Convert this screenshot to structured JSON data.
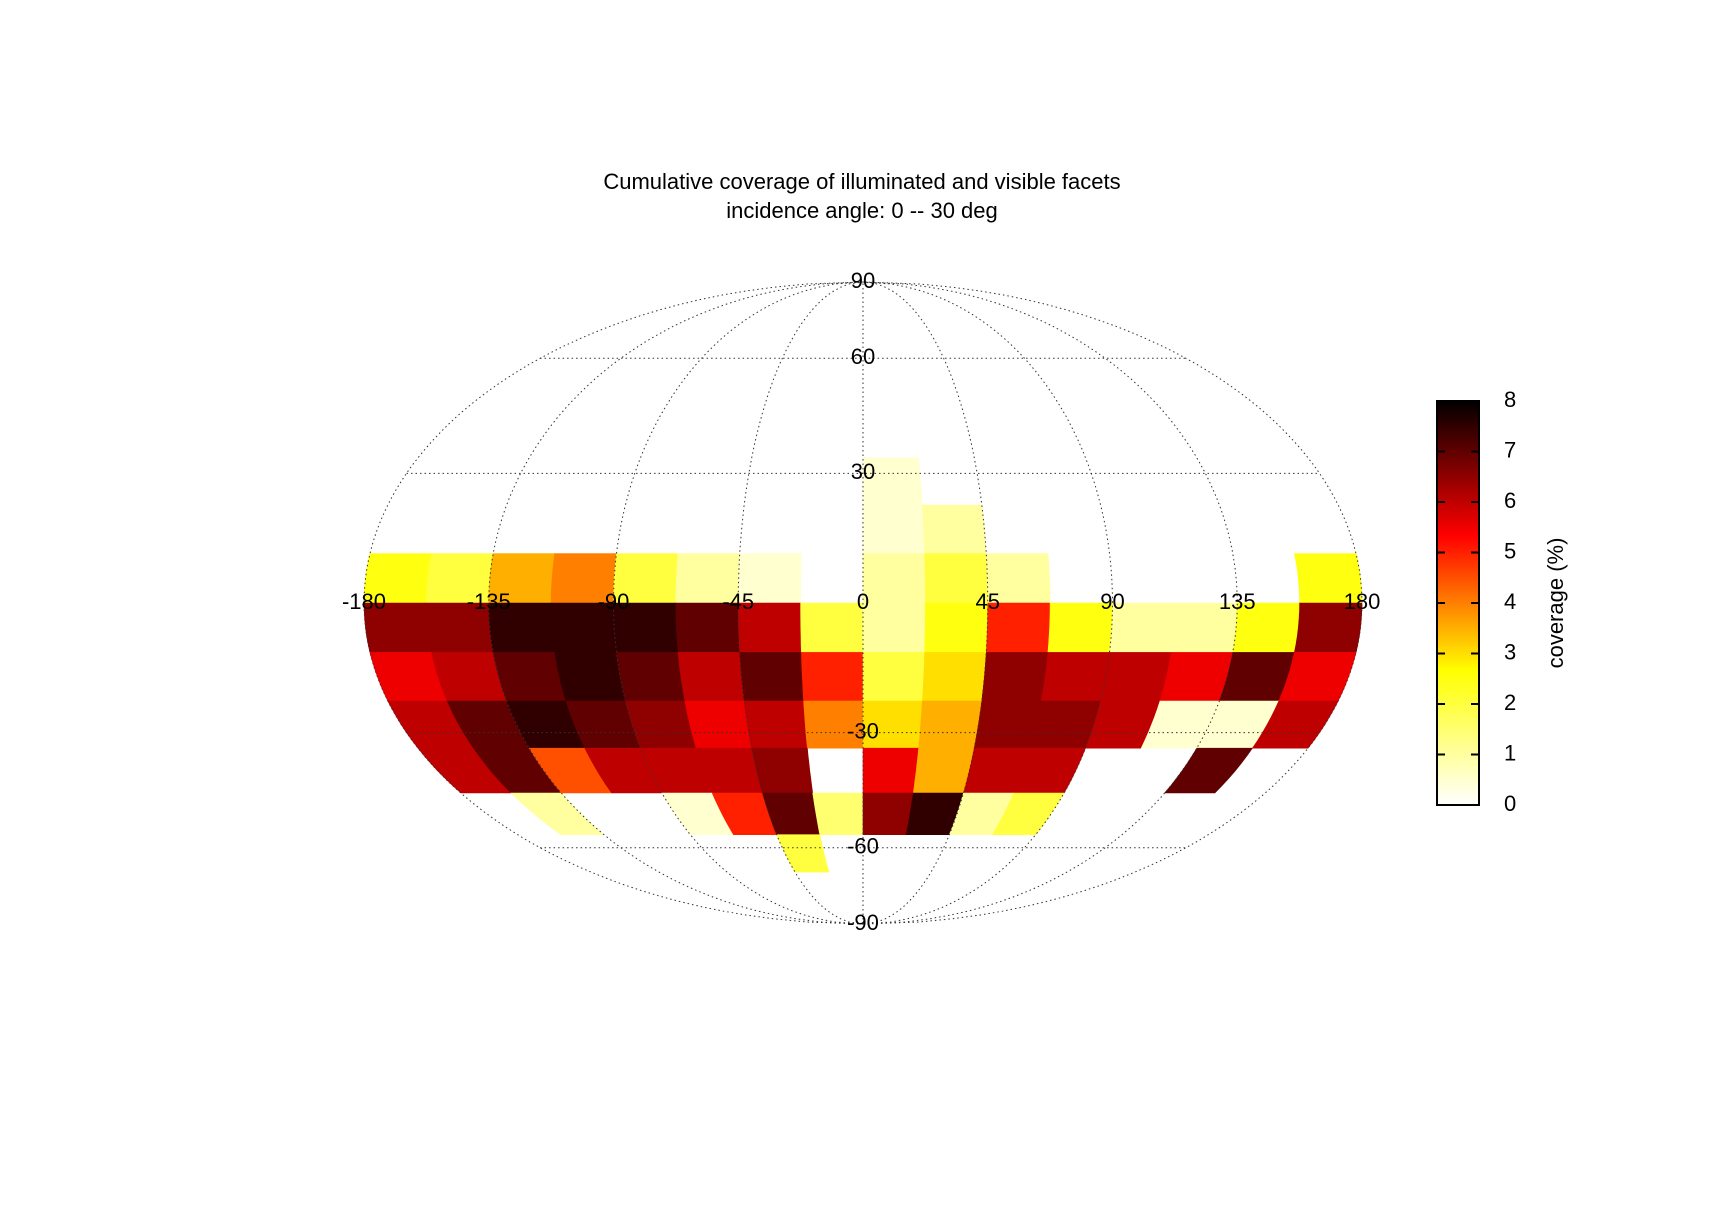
{
  "chart_data": {
    "type": "mollweide-heatmap",
    "title": "Cumulative coverage of illuminated and visible facets",
    "subtitle": "incidence angle:  0 -- 30 deg",
    "xlim": [
      -180,
      180
    ],
    "ylim": [
      -90,
      90
    ],
    "xticks": [
      -180,
      -135,
      -90,
      -45,
      0,
      45,
      90,
      135,
      180
    ],
    "yticks": [
      -90,
      -60,
      -30,
      30,
      60,
      90
    ],
    "grid": true,
    "lon_edges": [
      -180,
      -157.5,
      -135,
      -112.5,
      -90,
      -67.5,
      -45,
      -22.5,
      0,
      22.5,
      45,
      67.5,
      90,
      112.5,
      135,
      157.5,
      180
    ],
    "lat_edges": [
      33.75,
      22.5,
      11.25,
      0,
      -11.25,
      -22.5,
      -33.75,
      -45,
      -56.25,
      -67.5
    ],
    "values": [
      [
        null,
        null,
        null,
        null,
        null,
        null,
        null,
        null,
        0.5,
        null,
        null,
        null,
        null,
        null,
        null,
        null
      ],
      [
        null,
        null,
        null,
        null,
        null,
        null,
        null,
        null,
        0.5,
        1,
        null,
        null,
        null,
        null,
        null,
        null
      ],
      [
        2.5,
        2,
        3.5,
        4,
        2,
        1,
        0.5,
        null,
        1,
        2,
        1,
        null,
        null,
        null,
        null,
        2.5
      ],
      [
        6.5,
        6.5,
        7.5,
        7.5,
        7.5,
        7,
        6,
        2,
        1,
        2.5,
        5,
        2.5,
        1,
        1,
        2.5,
        6.5
      ],
      [
        5.5,
        6,
        7,
        7.5,
        7,
        6,
        7,
        5,
        2,
        3,
        6.5,
        6,
        6,
        5.5,
        7,
        5.5
      ],
      [
        6,
        7,
        7.5,
        7,
        6.5,
        5.5,
        6,
        4,
        3,
        3.5,
        6.5,
        6.5,
        6,
        0.5,
        0.5,
        6
      ],
      [
        6,
        7,
        4.5,
        6,
        6,
        6,
        6.5,
        null,
        5.5,
        3.5,
        6,
        6,
        null,
        null,
        7,
        null
      ],
      [
        null,
        1,
        null,
        null,
        0.5,
        5,
        7,
        1.5,
        6.5,
        7.5,
        1,
        2,
        null,
        null,
        null,
        null
      ],
      [
        null,
        null,
        null,
        null,
        null,
        null,
        2,
        null,
        null,
        null,
        null,
        null,
        null,
        null,
        null,
        null
      ]
    ],
    "colormap": [
      "#ffffff",
      "#ffff00",
      "#ff0000",
      "#000000"
    ],
    "colorbar": {
      "label": "coverage (%)",
      "lim": [
        0,
        8
      ],
      "ticks": [
        0,
        1,
        2,
        3,
        4,
        5,
        6,
        7,
        8
      ]
    }
  }
}
